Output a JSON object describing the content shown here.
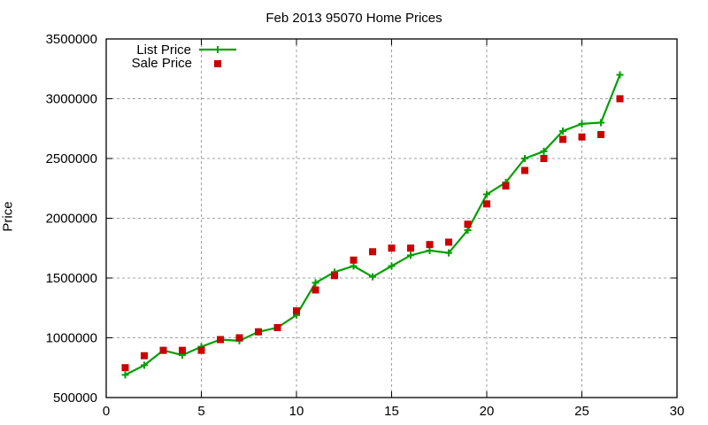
{
  "chart_data": {
    "type": "line",
    "title": "Feb 2013 95070 Home Prices",
    "xlabel": "",
    "ylabel": "Price",
    "xlim": [
      0,
      30
    ],
    "ylim": [
      500000,
      3500000
    ],
    "xticks": [
      0,
      5,
      10,
      15,
      20,
      25,
      30
    ],
    "yticks": [
      500000,
      1000000,
      1500000,
      2000000,
      2500000,
      3000000,
      3500000
    ],
    "grid": true,
    "legend_position": "top-left",
    "x": [
      1,
      2,
      3,
      4,
      5,
      6,
      7,
      8,
      9,
      10,
      11,
      12,
      13,
      14,
      15,
      16,
      17,
      18,
      19,
      20,
      21,
      22,
      23,
      24,
      25,
      26,
      27
    ],
    "series": [
      {
        "name": "List Price",
        "style": "line+cross",
        "color": "#00a000",
        "values": [
          690000,
          770000,
          895000,
          855000,
          925000,
          985000,
          975000,
          1050000,
          1085000,
          1190000,
          1460000,
          1550000,
          1600000,
          1510000,
          1600000,
          1690000,
          1730000,
          1710000,
          1900000,
          2200000,
          2300000,
          2500000,
          2560000,
          2730000,
          2790000,
          2800000,
          3200000
        ]
      },
      {
        "name": "Sale Price",
        "style": "square-points",
        "color": "#cc0000",
        "values": [
          750000,
          850000,
          895000,
          895000,
          895000,
          985000,
          1000000,
          1050000,
          1085000,
          1225000,
          1400000,
          1520000,
          1650000,
          1720000,
          1750000,
          1750000,
          1780000,
          1800000,
          1950000,
          2120000,
          2270000,
          2400000,
          2500000,
          2660000,
          2680000,
          2700000,
          3000000
        ]
      }
    ]
  }
}
